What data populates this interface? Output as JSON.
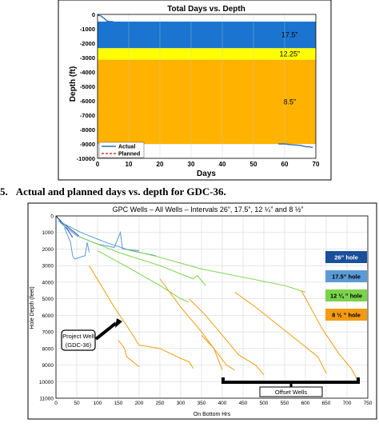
{
  "caption": {
    "number": "5.",
    "text": "Actual and planned days vs. depth for GDC-36."
  },
  "chart_data": [
    {
      "type": "area",
      "title": "Total Days vs. Depth",
      "xlabel": "Days",
      "ylabel": "Depth (ft)",
      "xlim": [
        0,
        70
      ],
      "ylim": [
        -10000,
        0
      ],
      "xticks": [
        "0",
        "10",
        "20",
        "30",
        "40",
        "50",
        "60",
        "70"
      ],
      "yticks": [
        "0",
        "-1000",
        "-2000",
        "-3000",
        "-4000",
        "-5000",
        "-6000",
        "-7000",
        "-8000",
        "-9000",
        "-10000"
      ],
      "grid": true,
      "legend": {
        "position": "bottom-left",
        "entries": [
          "Actual",
          "Planned"
        ]
      },
      "bands": [
        {
          "label": "17.5”",
          "from": -500,
          "to": -2350,
          "color": "#1a74d0"
        },
        {
          "label": "12.25”",
          "from": -2350,
          "to": -3150,
          "color": "#ffff00"
        },
        {
          "label": "8.5”",
          "from": -3150,
          "to": -9000,
          "color": "#ffb300"
        }
      ],
      "series": [
        {
          "name": "Actual",
          "color": "#2f6fad",
          "x": [
            0,
            1,
            2,
            3,
            4,
            5,
            58,
            60,
            62,
            65,
            66,
            67,
            68,
            69
          ],
          "y": [
            -50,
            -100,
            -250,
            -450,
            -500,
            -500,
            -9000,
            -9000,
            -9050,
            -9100,
            -9150,
            -9200,
            -9200,
            -9250
          ]
        },
        {
          "name": "Planned",
          "color": "#e03030",
          "x": [],
          "y": []
        }
      ]
    },
    {
      "type": "line",
      "title": "GPC Wells – All Wells – Intervals 26”, 17.5”, 12 ¼” and 8 ½”",
      "xlabel": "On Bottom Hrs",
      "ylabel": "Hole Depth (feet)",
      "xlim": [
        0,
        750
      ],
      "ylim": [
        11000,
        0
      ],
      "xticks": [
        "0",
        "50",
        "100",
        "150",
        "200",
        "250",
        "300",
        "350",
        "400",
        "450",
        "500",
        "550",
        "600",
        "650",
        "700",
        "750"
      ],
      "yticks": [
        "0",
        "1000",
        "2000",
        "3000",
        "4000",
        "5000",
        "6000",
        "7000",
        "8000",
        "9000",
        "10000",
        "11000"
      ],
      "grid": true,
      "legend": {
        "position": "right",
        "entries": [
          {
            "label": "26” hole",
            "color": "#1a4f9c"
          },
          {
            "label": "17.5” hole",
            "color": "#5b9bd5"
          },
          {
            "label": "12 ¼ ” hole",
            "color": "#7ad34a"
          },
          {
            "label": "8 ½ ” hole",
            "color": "#f39c12"
          }
        ]
      },
      "annotations": [
        {
          "text": "Project Well",
          "line2": "(GDC-36)"
        },
        {
          "text": "Offset Wells"
        }
      ],
      "series": [
        {
          "name": "26” hole",
          "color": "#1a4f9c",
          "x": [
            0,
            10,
            20,
            30,
            40
          ],
          "y": [
            0,
            300,
            600,
            900,
            1300
          ]
        },
        {
          "name": "26” hole",
          "color": "#1a4f9c",
          "x": [
            0,
            15,
            35,
            55
          ],
          "y": [
            0,
            400,
            800,
            1200
          ]
        },
        {
          "name": "17.5” hole",
          "color": "#5b9bd5",
          "x": [
            5,
            60,
            120,
            180,
            240
          ],
          "y": [
            300,
            1000,
            1600,
            2100,
            2400
          ]
        },
        {
          "name": "17.5” hole",
          "color": "#5b9bd5",
          "x": [
            10,
            50,
            100,
            140,
            155,
            160,
            200
          ],
          "y": [
            400,
            1200,
            1700,
            1900,
            1000,
            2000,
            2100
          ]
        },
        {
          "name": "17.5” hole",
          "color": "#5b9bd5",
          "x": [
            20,
            35,
            40,
            45,
            70,
            75,
            80
          ],
          "y": [
            700,
            1600,
            2400,
            2600,
            2400,
            1600,
            2200
          ]
        },
        {
          "name": "12 ¼ ” hole",
          "color": "#7ad34a",
          "x": [
            60,
            150,
            250,
            330,
            340,
            360
          ],
          "y": [
            1300,
            2200,
            3000,
            3800,
            3600,
            4200
          ]
        },
        {
          "name": "12 ¼ ” hole",
          "color": "#7ad34a",
          "x": [
            100,
            180,
            250,
            300,
            320
          ],
          "y": [
            2100,
            3200,
            4200,
            5000,
            5200
          ]
        },
        {
          "name": "12 ¼ ” hole",
          "color": "#7ad34a",
          "x": [
            170,
            250,
            350,
            450,
            550,
            600
          ],
          "y": [
            2000,
            2500,
            3200,
            3700,
            4200,
            4600
          ]
        },
        {
          "name": "8 ½ ” hole",
          "color": "#f39c12",
          "x": [
            80,
            140,
            180,
            200,
            250,
            300,
            320,
            330
          ],
          "y": [
            3000,
            5500,
            7000,
            7800,
            8000,
            8600,
            8800,
            9200
          ]
        },
        {
          "name": "8 ½ ” hole",
          "color": "#f39c12",
          "x": [
            250,
            300,
            350,
            380,
            400
          ],
          "y": [
            3800,
            5500,
            7000,
            8000,
            9300
          ]
        },
        {
          "name": "8 ½ ” hole",
          "color": "#f39c12",
          "x": [
            320,
            360,
            400,
            440,
            480,
            500
          ],
          "y": [
            5000,
            6000,
            7200,
            8400,
            9000,
            9600
          ]
        },
        {
          "name": "8 ½ ” hole",
          "color": "#f39c12",
          "x": [
            430,
            480,
            530,
            580,
            630,
            650
          ],
          "y": [
            4600,
            5500,
            6500,
            7500,
            8500,
            9500
          ]
        },
        {
          "name": "8 ½ ” hole",
          "color": "#f39c12",
          "x": [
            590,
            640,
            680,
            710,
            725
          ],
          "y": [
            4500,
            6800,
            8300,
            9200,
            9900
          ]
        },
        {
          "name": "8 ½ ” hole",
          "color": "#f39c12",
          "x": [
            350,
            380,
            410,
            430
          ],
          "y": [
            7200,
            8000,
            9000,
            9300
          ]
        },
        {
          "name": "8 ½ ” hole",
          "color": "#f39c12",
          "x": [
            150,
            165,
            170,
            185,
            200
          ],
          "y": [
            7500,
            8000,
            8500,
            8800,
            9100
          ]
        }
      ]
    }
  ]
}
